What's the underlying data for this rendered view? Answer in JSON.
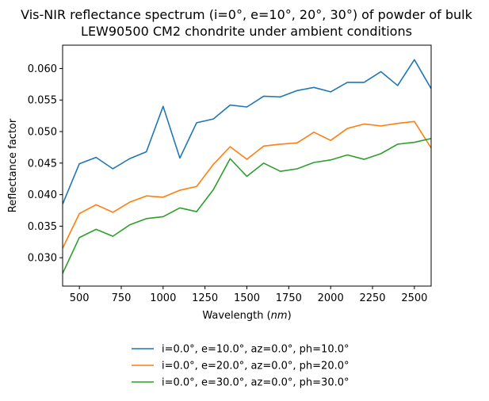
{
  "chart_data": {
    "type": "line",
    "title_lines": [
      "Vis-NIR reflectance spectrum (i=0°, e=10°, 20°, 30°) of powder of bulk",
      "LEW90500 CM2 chondrite under ambient conditions"
    ],
    "xlabel_prefix": "Wavelength (",
    "xlabel_unit": "nm",
    "xlabel_suffix": ")",
    "ylabel": "Reflectance factor",
    "xlim": [
      400,
      2600
    ],
    "ylim": [
      0.0255,
      0.0637
    ],
    "xticks": [
      500,
      750,
      1000,
      1250,
      1500,
      1750,
      2000,
      2250,
      2500
    ],
    "yticks": [
      0.03,
      0.035,
      0.04,
      0.045,
      0.05,
      0.055,
      0.06
    ],
    "ytick_labels": [
      "0.030",
      "0.035",
      "0.040",
      "0.045",
      "0.050",
      "0.055",
      "0.060"
    ],
    "grid": false,
    "legend_position": "below-center",
    "x": [
      400,
      500,
      600,
      700,
      800,
      900,
      1000,
      1100,
      1200,
      1300,
      1400,
      1500,
      1600,
      1700,
      1800,
      1900,
      2000,
      2100,
      2200,
      2300,
      2400,
      2500,
      2600
    ],
    "series": [
      {
        "name": "i=0.0°, e=10.0°, az=0.0°, ph=10.0°",
        "color": "#1f77b4",
        "values": [
          0.0385,
          0.0449,
          0.0459,
          0.0441,
          0.0457,
          0.0468,
          0.054,
          0.0458,
          0.0514,
          0.052,
          0.0542,
          0.0539,
          0.0556,
          0.0555,
          0.0565,
          0.057,
          0.0563,
          0.0578,
          0.0578,
          0.0595,
          0.0573,
          0.0614,
          0.0568
        ]
      },
      {
        "name": "i=0.0°, e=20.0°, az=0.0°, ph=20.0°",
        "color": "#ff7f0e",
        "values": [
          0.0315,
          0.037,
          0.0384,
          0.0372,
          0.0388,
          0.0398,
          0.0396,
          0.0407,
          0.0413,
          0.0448,
          0.0476,
          0.0456,
          0.0477,
          0.048,
          0.0482,
          0.0499,
          0.0486,
          0.0505,
          0.0512,
          0.0509,
          0.0513,
          0.0516,
          0.0474
        ]
      },
      {
        "name": "i=0.0°, e=30.0°, az=0.0°, ph=30.0°",
        "color": "#2ca02c",
        "values": [
          0.0275,
          0.0332,
          0.0345,
          0.0334,
          0.0352,
          0.0362,
          0.0365,
          0.0379,
          0.0373,
          0.0408,
          0.0457,
          0.0429,
          0.045,
          0.0437,
          0.0441,
          0.0451,
          0.0455,
          0.0463,
          0.0456,
          0.0465,
          0.048,
          0.0483,
          0.0489
        ]
      }
    ]
  }
}
